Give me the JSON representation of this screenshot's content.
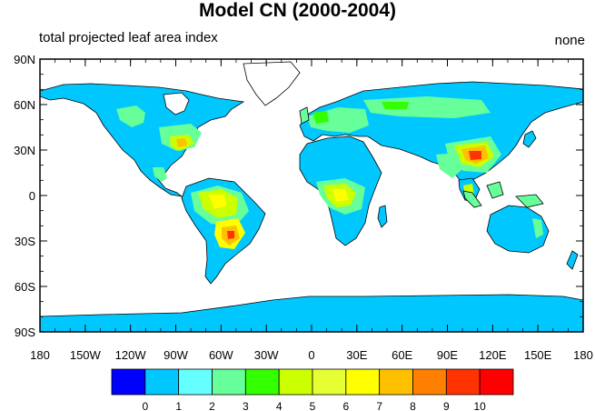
{
  "title": "Model CN (2000-2004)",
  "subtitle_left": "total projected leaf area index",
  "subtitle_right": "none",
  "map": {
    "projection": "cylindrical-equidistant",
    "lon_range": [
      -180,
      180
    ],
    "lat_range": [
      -90,
      90
    ],
    "ocean_color": "#ffffff",
    "coastline_color": "#000000"
  },
  "axes": {
    "x_ticks": [
      {
        "value": -180,
        "label": "180"
      },
      {
        "value": -150,
        "label": "150W"
      },
      {
        "value": -120,
        "label": "120W"
      },
      {
        "value": -90,
        "label": "90W"
      },
      {
        "value": -60,
        "label": "60W"
      },
      {
        "value": -30,
        "label": "30W"
      },
      {
        "value": 0,
        "label": "0"
      },
      {
        "value": 30,
        "label": "30E"
      },
      {
        "value": 60,
        "label": "60E"
      },
      {
        "value": 90,
        "label": "90E"
      },
      {
        "value": 120,
        "label": "120E"
      },
      {
        "value": 150,
        "label": "150E"
      },
      {
        "value": 180,
        "label": "180"
      }
    ],
    "y_ticks": [
      {
        "value": 90,
        "label": "90N"
      },
      {
        "value": 60,
        "label": "60N"
      },
      {
        "value": 30,
        "label": "30N"
      },
      {
        "value": 0,
        "label": "0"
      },
      {
        "value": -30,
        "label": "30S"
      },
      {
        "value": -60,
        "label": "60S"
      },
      {
        "value": -90,
        "label": "90S"
      }
    ]
  },
  "colorbar": {
    "colors": [
      "#0000ff",
      "#00c8ff",
      "#66ffff",
      "#66ff99",
      "#33ff00",
      "#ccff00",
      "#e6ff33",
      "#ffff00",
      "#ffc000",
      "#ff8000",
      "#ff3300",
      "#ff0000"
    ],
    "labels": [
      "0",
      "1",
      "2",
      "3",
      "4",
      "5",
      "6",
      "7",
      "8",
      "9",
      "10"
    ]
  },
  "chart_data": {
    "type": "heatmap",
    "variable": "total projected leaf area index",
    "units": "none",
    "levels": [
      0,
      1,
      2,
      3,
      4,
      5,
      6,
      7,
      8,
      9,
      10
    ],
    "regions": [
      {
        "name": "Antarctica",
        "lon": [
          -180,
          180
        ],
        "lat": [
          -90,
          -65
        ],
        "value": 0.5
      },
      {
        "name": "Greenland",
        "lon": [
          -55,
          -20
        ],
        "lat": [
          60,
          83
        ],
        "value": 0
      },
      {
        "name": "Boreal North America",
        "lon": [
          -165,
          -55
        ],
        "lat": [
          50,
          70
        ],
        "value": 1.5
      },
      {
        "name": "Eastern North America",
        "lon": [
          -95,
          -65
        ],
        "lat": [
          28,
          48
        ],
        "value": 4
      },
      {
        "name": "Amazonia",
        "lon": [
          -75,
          -45
        ],
        "lat": [
          -15,
          5
        ],
        "value": 5.5
      },
      {
        "name": "Southeastern South America",
        "lon": [
          -60,
          -40
        ],
        "lat": [
          -35,
          -15
        ],
        "value": 7.5
      },
      {
        "name": "Sahara",
        "lon": [
          -15,
          35
        ],
        "lat": [
          15,
          30
        ],
        "value": 0.5
      },
      {
        "name": "Central Africa",
        "lon": [
          10,
          30
        ],
        "lat": [
          -10,
          8
        ],
        "value": 5.5
      },
      {
        "name": "Europe",
        "lon": [
          0,
          40
        ],
        "lat": [
          45,
          60
        ],
        "value": 4
      },
      {
        "name": "Siberia",
        "lon": [
          60,
          140
        ],
        "lat": [
          52,
          68
        ],
        "value": 3
      },
      {
        "name": "East China",
        "lon": [
          105,
          122
        ],
        "lat": [
          20,
          35
        ],
        "value": 8
      },
      {
        "name": "Southeast Asia",
        "lon": [
          95,
          125
        ],
        "lat": [
          -8,
          20
        ],
        "value": 5
      },
      {
        "name": "Australia",
        "lon": [
          115,
          153
        ],
        "lat": [
          -38,
          -12
        ],
        "value": 0.5
      }
    ]
  }
}
